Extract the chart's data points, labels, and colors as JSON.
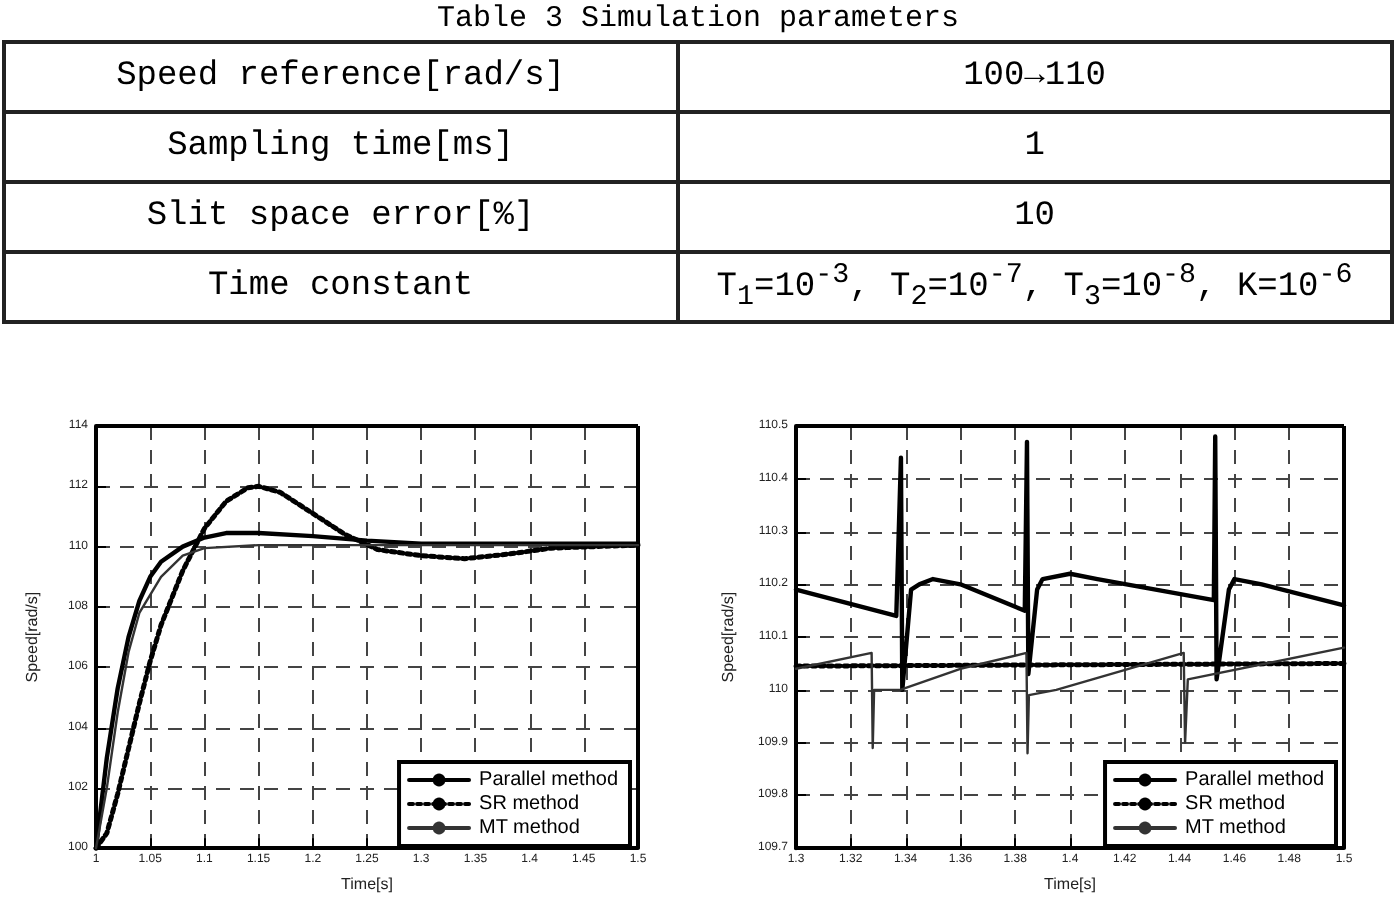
{
  "chart_data": [
    {
      "type": "other",
      "title": "Table 3 Simulation parameters",
      "annotations": [
        "Speed reference[rad/s]",
        "100→110",
        "Sampling time[ms]",
        "1",
        "Slit space error[%]",
        "10",
        "Time constant",
        "T$_{1}$=10$^{-3}$, T$_{2}$=10$^{-7}$, T$_{3}$=10$^{-8}$, K=10$^{-6}$"
      ]
    },
    {
      "type": "line",
      "xlabel": "Time[s]",
      "ylabel": "Speed[rad/s]",
      "xlim": [
        1,
        1.5
      ],
      "xticks": [
        1,
        1.05,
        1.1,
        1.15,
        1.2,
        1.25,
        1.3,
        1.35,
        1.4,
        1.45,
        1.5
      ],
      "ylim": [
        100,
        114
      ],
      "yticks": [
        100,
        102,
        104,
        106,
        108,
        110,
        112,
        114
      ],
      "grid": true,
      "legend": "bottom right",
      "marker": "none",
      "series": [
        {
          "name": "Parallel method",
          "color": "#000000",
          "line_style": "solid",
          "x": [
            1.0,
            1.01,
            1.02,
            1.03,
            1.04,
            1.05,
            1.06,
            1.08,
            1.1,
            1.12,
            1.15,
            1.2,
            1.25,
            1.3,
            1.4,
            1.5
          ],
          "values": [
            100,
            103,
            105.3,
            107,
            108.2,
            109,
            109.5,
            110,
            110.3,
            110.45,
            110.45,
            110.35,
            110.2,
            110.1,
            110.1,
            110.1
          ]
        },
        {
          "name": "SR method",
          "color": "#000000",
          "line_style": "dotted",
          "x": [
            1.0,
            1.01,
            1.02,
            1.03,
            1.04,
            1.05,
            1.06,
            1.08,
            1.1,
            1.12,
            1.14,
            1.15,
            1.17,
            1.2,
            1.23,
            1.26,
            1.3,
            1.34,
            1.38,
            1.42,
            1.5
          ],
          "values": [
            100,
            100.5,
            101.8,
            103.3,
            104.8,
            106.2,
            107.4,
            109.2,
            110.6,
            111.5,
            111.95,
            112,
            111.8,
            111.1,
            110.4,
            109.9,
            109.7,
            109.6,
            109.75,
            109.95,
            110.05
          ]
        },
        {
          "name": "MT method",
          "color": "#333333",
          "line_style": "solid",
          "x": [
            1.0,
            1.01,
            1.02,
            1.03,
            1.04,
            1.06,
            1.08,
            1.1,
            1.15,
            1.2,
            1.3,
            1.5
          ],
          "values": [
            100,
            102,
            104.5,
            106.5,
            107.8,
            109,
            109.7,
            109.95,
            110.05,
            110.05,
            110.05,
            110.05
          ]
        }
      ]
    },
    {
      "type": "line",
      "xlabel": "Time[s]",
      "ylabel": "Speed[rad/s]",
      "xlim": [
        1.3,
        1.5
      ],
      "xticks": [
        1.3,
        1.32,
        1.34,
        1.36,
        1.38,
        1.4,
        1.42,
        1.44,
        1.46,
        1.48,
        1.5
      ],
      "ylim": [
        109.7,
        110.5
      ],
      "yticks": [
        109.7,
        109.8,
        109.9,
        110,
        110.1,
        110.2,
        110.3,
        110.4,
        110.5
      ],
      "grid": true,
      "legend": "bottom right",
      "marker": "none",
      "series": [
        {
          "name": "Parallel method",
          "color": "#000000",
          "line_style": "solid",
          "x": [
            1.3,
            1.3366,
            1.3383,
            1.3388,
            1.342,
            1.345,
            1.35,
            1.36,
            1.3835,
            1.3843,
            1.3848,
            1.388,
            1.39,
            1.4,
            1.41,
            1.4525,
            1.453,
            1.4535,
            1.458,
            1.46,
            1.47,
            1.5
          ],
          "values": [
            110.19,
            110.14,
            110.44,
            110.0,
            110.19,
            110.2,
            110.21,
            110.2,
            110.15,
            110.47,
            110.03,
            110.19,
            110.21,
            110.22,
            110.21,
            110.17,
            110.48,
            110.02,
            110.19,
            110.21,
            110.2,
            110.16
          ]
        },
        {
          "name": "SR method",
          "color": "#000000",
          "line_style": "dotted",
          "x": [
            1.3,
            1.5
          ],
          "values": [
            110.045,
            110.05
          ]
        },
        {
          "name": "MT method",
          "color": "#333333",
          "line_style": "solid",
          "x": [
            1.3,
            1.3276,
            1.328,
            1.3285,
            1.338,
            1.36,
            1.3841,
            1.3845,
            1.385,
            1.395,
            1.4415,
            1.442,
            1.443,
            1.5
          ],
          "values": [
            110.04,
            110.07,
            109.89,
            110.0,
            110.0,
            110.04,
            110.07,
            109.88,
            109.99,
            110.0,
            110.07,
            109.9,
            110.02,
            110.08
          ]
        }
      ]
    }
  ]
}
